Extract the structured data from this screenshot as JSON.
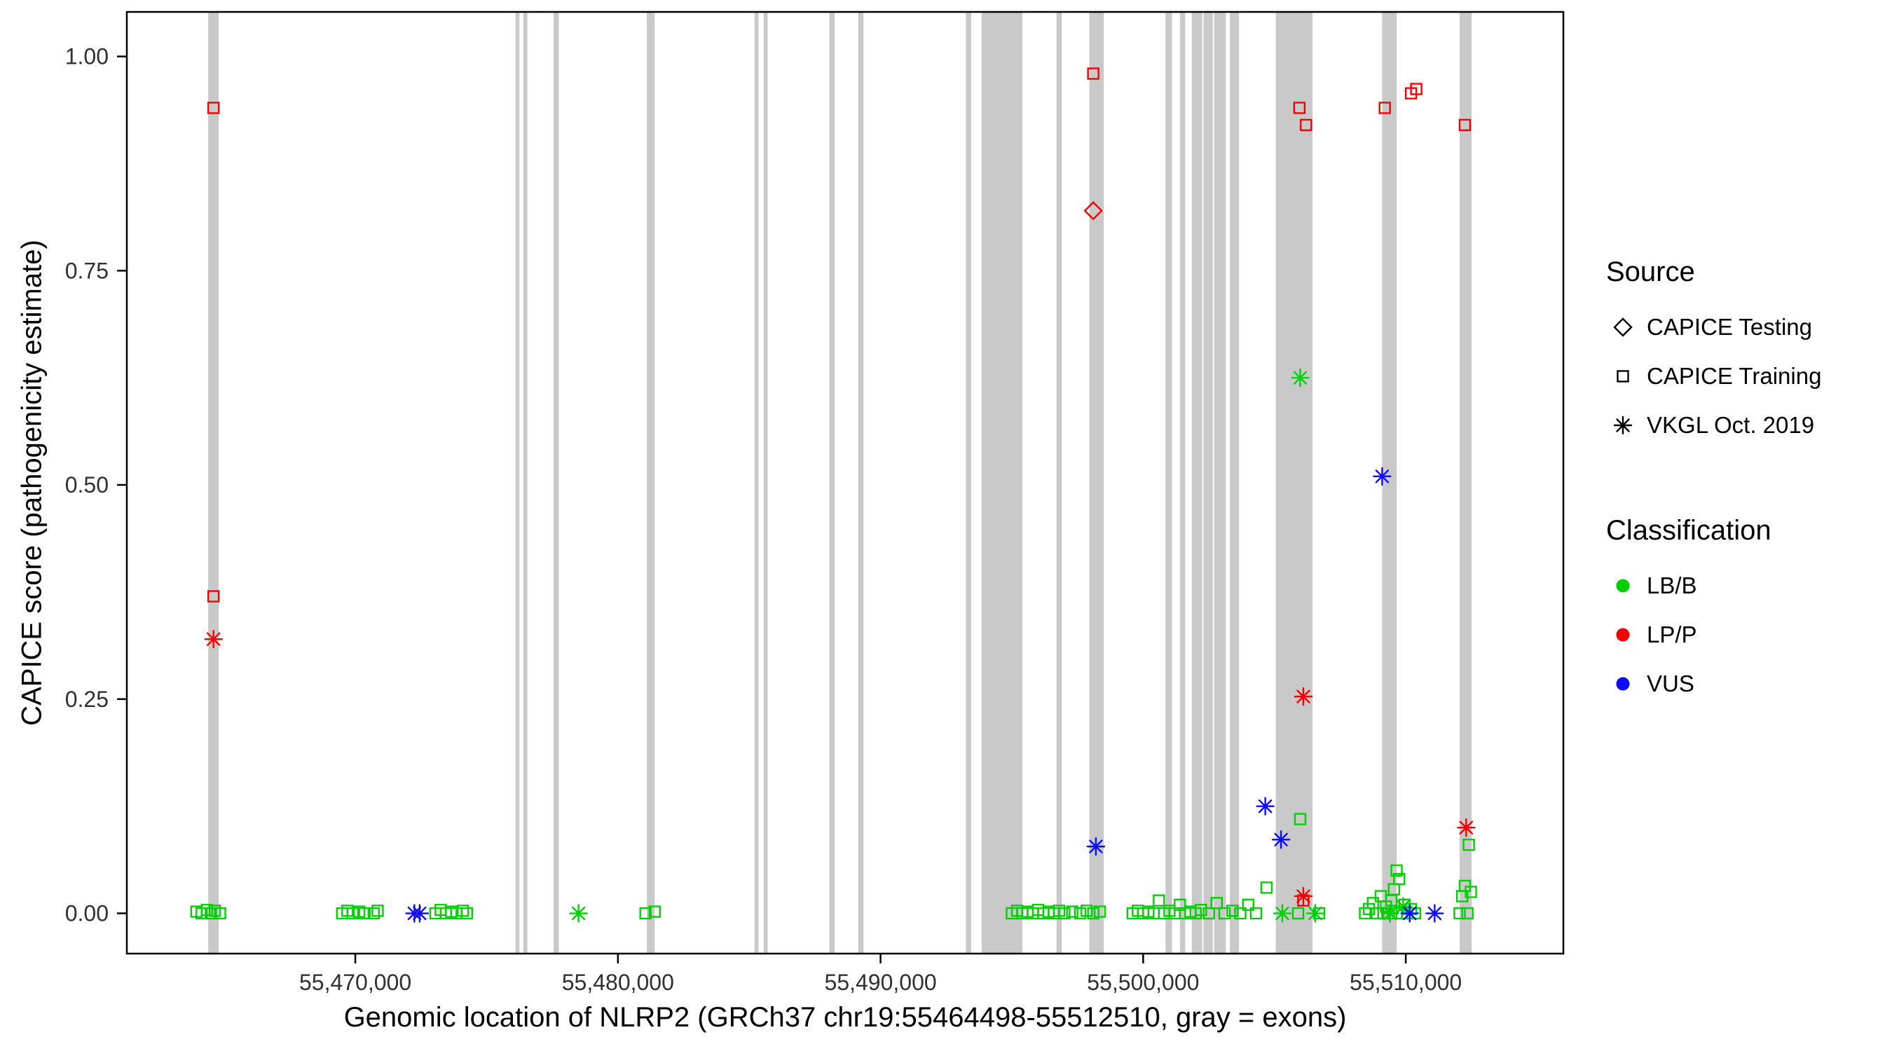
{
  "chart_data": {
    "type": "scatter",
    "title": "",
    "xlabel": "Genomic location of NLRP2 (GRCh37 chr19:55464498-55512510, gray = exons)",
    "ylabel": "CAPICE score (pathogenicity estimate)",
    "x_domain": [
      55461300,
      55516000
    ],
    "y_domain": [
      -0.047,
      1.052
    ],
    "x_ticks": [
      {
        "value": 55470000,
        "label": "55,470,000"
      },
      {
        "value": 55480000,
        "label": "55,480,000"
      },
      {
        "value": 55490000,
        "label": "55,490,000"
      },
      {
        "value": 55500000,
        "label": "55,500,000"
      },
      {
        "value": 55510000,
        "label": "55,510,000"
      }
    ],
    "y_ticks": [
      {
        "value": 0,
        "label": "0.00"
      },
      {
        "value": 0.25,
        "label": "0.25"
      },
      {
        "value": 0.5,
        "label": "0.50"
      },
      {
        "value": 0.75,
        "label": "0.75"
      },
      {
        "value": 1,
        "label": "1.00"
      }
    ],
    "colors": {
      "lbb": "#00CF00",
      "lpp": "#F40000",
      "vus": "#0B0BFF",
      "exon": "#C9C9C9",
      "legend_marker": "#000000"
    },
    "exons": [
      [
        55464400,
        55464800
      ],
      [
        55476100,
        55476250
      ],
      [
        55476400,
        55476550
      ],
      [
        55477550,
        55477750
      ],
      [
        55481100,
        55481400
      ],
      [
        55485200,
        55485350
      ],
      [
        55485550,
        55485700
      ],
      [
        55488050,
        55488250
      ],
      [
        55489150,
        55489350
      ],
      [
        55493250,
        55493450
      ],
      [
        55493850,
        55495400
      ],
      [
        55496700,
        55496900
      ],
      [
        55497950,
        55498500
      ],
      [
        55500850,
        55501100
      ],
      [
        55501400,
        55501600
      ],
      [
        55501850,
        55502250
      ],
      [
        55502300,
        55502650
      ],
      [
        55502700,
        55503150
      ],
      [
        55503300,
        55503650
      ],
      [
        55505050,
        55506450
      ],
      [
        55509100,
        55509650
      ],
      [
        55512050,
        55512510
      ]
    ],
    "series": [
      {
        "id": "training-lpp",
        "source": "CAPICE Training",
        "classification": "LP/P",
        "marker": "square-open",
        "color": "#F40000",
        "points": [
          [
            55464600,
            0.94
          ],
          [
            55464600,
            0.37
          ],
          [
            55498100,
            0.98
          ],
          [
            55505950,
            0.94
          ],
          [
            55506200,
            0.92
          ],
          [
            55506100,
            0.015
          ],
          [
            55509200,
            0.94
          ],
          [
            55510200,
            0.957
          ],
          [
            55510400,
            0.962
          ],
          [
            55512250,
            0.92
          ]
        ]
      },
      {
        "id": "testing-lpp",
        "source": "CAPICE Testing",
        "classification": "LP/P",
        "marker": "diamond-open",
        "color": "#F40000",
        "points": [
          [
            55498100,
            0.82
          ]
        ]
      },
      {
        "id": "vkgl-lpp",
        "source": "VKGL Oct. 2019",
        "classification": "LP/P",
        "marker": "asterisk",
        "color": "#F40000",
        "points": [
          [
            55464600,
            0.32
          ],
          [
            55506100,
            0.253
          ],
          [
            55506100,
            0.02
          ],
          [
            55512300,
            0.1
          ]
        ]
      },
      {
        "id": "training-lbb",
        "source": "CAPICE Training",
        "classification": "LB/B",
        "marker": "square-open",
        "color": "#00CF00",
        "points": [
          [
            55463950,
            0.002
          ],
          [
            55464150,
            0
          ],
          [
            55464350,
            0.004
          ],
          [
            55464500,
            0
          ],
          [
            55464650,
            0.003
          ],
          [
            55464850,
            0
          ],
          [
            55469500,
            0
          ],
          [
            55469700,
            0.003
          ],
          [
            55469900,
            0
          ],
          [
            55470150,
            0.002
          ],
          [
            55470350,
            0
          ],
          [
            55470700,
            0
          ],
          [
            55470850,
            0.003
          ],
          [
            55473050,
            0
          ],
          [
            55473250,
            0.004
          ],
          [
            55473450,
            0
          ],
          [
            55473650,
            0.002
          ],
          [
            55473850,
            0
          ],
          [
            55474100,
            0.003
          ],
          [
            55474250,
            0
          ],
          [
            55481050,
            0
          ],
          [
            55481400,
            0.002
          ],
          [
            55495000,
            0
          ],
          [
            55495200,
            0.003
          ],
          [
            55495400,
            0
          ],
          [
            55495600,
            0.002
          ],
          [
            55495800,
            0
          ],
          [
            55496000,
            0.004
          ],
          [
            55496200,
            0
          ],
          [
            55496400,
            0.002
          ],
          [
            55496600,
            0
          ],
          [
            55496800,
            0.003
          ],
          [
            55497000,
            0
          ],
          [
            55497300,
            0.002
          ],
          [
            55497600,
            0
          ],
          [
            55497850,
            0.003
          ],
          [
            55498100,
            0
          ],
          [
            55498350,
            0.002
          ],
          [
            55499600,
            0
          ],
          [
            55499800,
            0.003
          ],
          [
            55500000,
            0
          ],
          [
            55500200,
            0.002
          ],
          [
            55500400,
            0
          ],
          [
            55500600,
            0.015
          ],
          [
            55500800,
            0
          ],
          [
            55501000,
            0.003
          ],
          [
            55501200,
            0
          ],
          [
            55501400,
            0.01
          ],
          [
            55501600,
            0
          ],
          [
            55501800,
            0.002
          ],
          [
            55502000,
            0
          ],
          [
            55502200,
            0.004
          ],
          [
            55502500,
            0
          ],
          [
            55502800,
            0.012
          ],
          [
            55503100,
            0
          ],
          [
            55503400,
            0.003
          ],
          [
            55503700,
            0
          ],
          [
            55504000,
            0.01
          ],
          [
            55504300,
            0
          ],
          [
            55504700,
            0.03
          ],
          [
            55505900,
            0
          ],
          [
            55505980,
            0.11
          ],
          [
            55506700,
            0
          ],
          [
            55508450,
            0
          ],
          [
            55508600,
            0.005
          ],
          [
            55508750,
            0.012
          ],
          [
            55508900,
            0
          ],
          [
            55509050,
            0.02
          ],
          [
            55509150,
            0
          ],
          [
            55509250,
            0.008
          ],
          [
            55509350,
            0
          ],
          [
            55509450,
            0.015
          ],
          [
            55509550,
            0.028
          ],
          [
            55509650,
            0.05
          ],
          [
            55509750,
            0.04
          ],
          [
            55509850,
            0
          ],
          [
            55509950,
            0.01
          ],
          [
            55510050,
            0
          ],
          [
            55510200,
            0.005
          ],
          [
            55510350,
            0
          ],
          [
            55512050,
            0
          ],
          [
            55512150,
            0.02
          ],
          [
            55512250,
            0.032
          ],
          [
            55512350,
            0
          ],
          [
            55512400,
            0.08
          ],
          [
            55512480,
            0.025
          ]
        ]
      },
      {
        "id": "vkgl-lbb",
        "source": "VKGL Oct. 2019",
        "classification": "LB/B",
        "marker": "asterisk",
        "color": "#00CF00",
        "points": [
          [
            55478500,
            0
          ],
          [
            55505980,
            0.625
          ],
          [
            55505300,
            0
          ],
          [
            55506550,
            0
          ],
          [
            55509900,
            0.008
          ],
          [
            55509400,
            0
          ]
        ]
      },
      {
        "id": "vkgl-vus",
        "source": "VKGL Oct. 2019",
        "classification": "VUS",
        "marker": "asterisk",
        "color": "#0B0BFF",
        "points": [
          [
            55472250,
            0
          ],
          [
            55472450,
            0
          ],
          [
            55498200,
            0.078
          ],
          [
            55504650,
            0.125
          ],
          [
            55505250,
            0.086
          ],
          [
            55509100,
            0.51
          ],
          [
            55510150,
            0
          ],
          [
            55511100,
            0
          ]
        ]
      }
    ],
    "legend": {
      "source_title": "Source",
      "source_items": [
        {
          "label": "CAPICE Testing",
          "marker": "diamond-open"
        },
        {
          "label": "CAPICE Training",
          "marker": "square-open"
        },
        {
          "label": "VKGL Oct. 2019",
          "marker": "asterisk"
        }
      ],
      "classification_title": "Classification",
      "classification_items": [
        {
          "label": "LB/B",
          "color": "#00CF00"
        },
        {
          "label": "LP/P",
          "color": "#F40000"
        },
        {
          "label": "VUS",
          "color": "#0B0BFF"
        }
      ]
    }
  }
}
